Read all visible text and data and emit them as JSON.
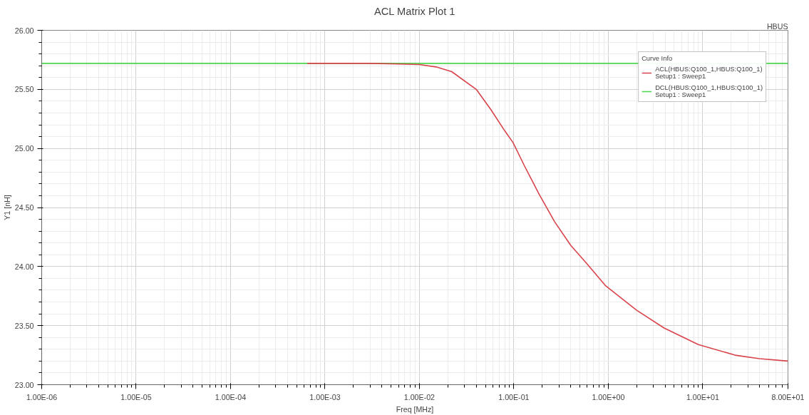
{
  "chart_data": {
    "type": "line",
    "title": "ACL Matrix Plot 1",
    "xlabel": "Freq [MHz]",
    "ylabel": "Y1 [nH]",
    "legend_title": "Curve Info",
    "annotations": [
      "HBUS"
    ],
    "log": "x",
    "xlim": [
      1e-06,
      80
    ],
    "ylim": [
      23,
      26
    ],
    "xticks": [
      {
        "value": 1e-06,
        "label": "1.00E-06"
      },
      {
        "value": 1e-05,
        "label": "1.00E-05"
      },
      {
        "value": 0.0001,
        "label": "1.00E-04"
      },
      {
        "value": 0.001,
        "label": "1.00E-03"
      },
      {
        "value": 0.01,
        "label": "1.00E-02"
      },
      {
        "value": 0.1,
        "label": "1.00E-01"
      },
      {
        "value": 1,
        "label": "1.00E+00"
      },
      {
        "value": 10,
        "label": "1.00E+01"
      },
      {
        "value": 80,
        "label": "8.00E+01"
      }
    ],
    "yticks": [
      {
        "value": 23,
        "label": "23.00"
      },
      {
        "value": 23.5,
        "label": "23.50"
      },
      {
        "value": 24,
        "label": "24.00"
      },
      {
        "value": 24.5,
        "label": "24.50"
      },
      {
        "value": 25,
        "label": "25.00"
      },
      {
        "value": 25.5,
        "label": "25.50"
      },
      {
        "value": 26,
        "label": "26.00"
      }
    ],
    "grid": true,
    "legend": "top right",
    "line_style": "solid",
    "marker": "none",
    "series": [
      {
        "name": "ACL(HBUS:Q100_1,HBUS:Q100_1)\nSetup1 : Sweep1",
        "color": "#d9434b",
        "x": [
          0.00065,
          0.003,
          0.006,
          0.01,
          0.015,
          0.022,
          0.04,
          0.057,
          0.08,
          0.098,
          0.13,
          0.186,
          0.27,
          0.4,
          0.6,
          0.93,
          2,
          3.9,
          9,
          22,
          40,
          80
        ],
        "values": [
          25.72,
          25.72,
          25.715,
          25.71,
          25.69,
          25.65,
          25.5,
          25.33,
          25.15,
          25.05,
          24.85,
          24.61,
          24.38,
          24.18,
          24.02,
          23.84,
          23.63,
          23.48,
          23.34,
          23.25,
          23.22,
          23.2
        ]
      },
      {
        "name": "DCL(HBUS:Q100_1,HBUS:Q100_1)\nSetup1 : Sweep1",
        "color": "#4cd64c",
        "x": [
          1e-06,
          80
        ],
        "values": [
          25.72,
          25.72
        ]
      }
    ]
  }
}
